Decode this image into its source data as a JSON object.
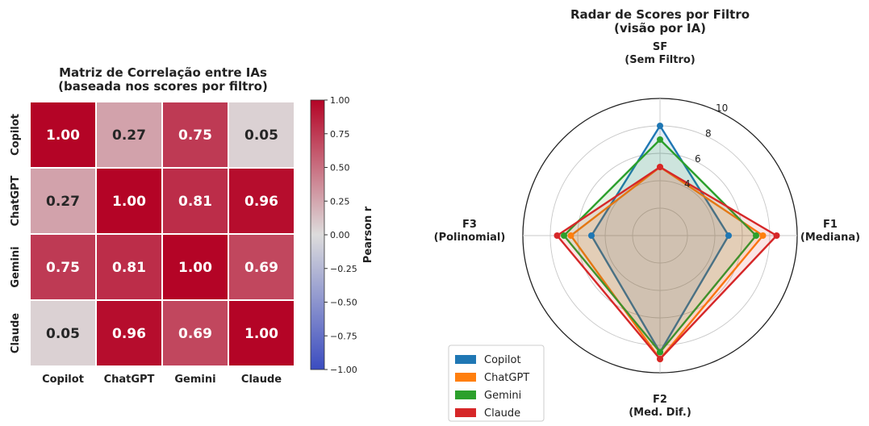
{
  "chart_data": [
    {
      "type": "heatmap",
      "title": "Matriz de Correlação entre IAs\n(baseada nos scores por filtro)",
      "row_labels": [
        "Copilot",
        "ChatGPT",
        "Gemini",
        "Claude"
      ],
      "col_labels": [
        "Copilot",
        "ChatGPT",
        "Gemini",
        "Claude"
      ],
      "values": [
        [
          1.0,
          0.27,
          0.75,
          0.05
        ],
        [
          0.27,
          1.0,
          0.81,
          0.96
        ],
        [
          0.75,
          0.81,
          1.0,
          0.69
        ],
        [
          0.05,
          0.96,
          0.69,
          1.0
        ]
      ],
      "colorbar": {
        "label": "Pearson r",
        "range": [
          -1.0,
          1.0
        ],
        "ticks": [
          "1.00",
          "0.75",
          "0.50",
          "0.25",
          "0.00",
          "−0.25",
          "−0.50",
          "−0.75",
          "−1.00"
        ],
        "colormap": "coolwarm",
        "colors": {
          "low": "#3b4cc0",
          "mid": "#dddcdc",
          "high": "#b40426"
        }
      }
    },
    {
      "type": "radar",
      "title": "Radar de Scores por Filtro\n(visão por IA)",
      "axes": [
        "SF\n(Sem Filtro)",
        "F1\n(Mediana)",
        "F2\n(Med. Dif.)",
        "F3\n(Polinomial)"
      ],
      "rlim": [
        0,
        10
      ],
      "rticks": [
        "4",
        "6",
        "8",
        "10"
      ],
      "grid": true,
      "legend_position": "lower-left",
      "series": [
        {
          "name": "Copilot",
          "color": "#1f77b4",
          "values": [
            8.0,
            5.0,
            8.5,
            5.0
          ]
        },
        {
          "name": "ChatGPT",
          "color": "#ff7f0e",
          "values": [
            5.0,
            7.5,
            9.0,
            6.5
          ]
        },
        {
          "name": "Gemini",
          "color": "#2ca02c",
          "values": [
            7.0,
            7.0,
            8.5,
            7.0
          ]
        },
        {
          "name": "Claude",
          "color": "#d62728",
          "values": [
            5.0,
            8.5,
            9.0,
            7.5
          ]
        }
      ]
    }
  ]
}
